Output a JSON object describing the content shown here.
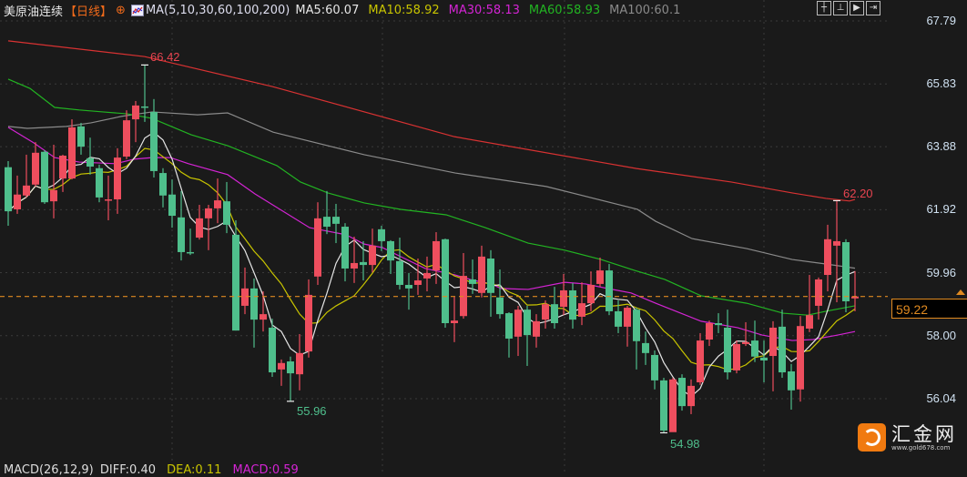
{
  "header": {
    "title": "美原油连续",
    "period": "【日线】",
    "ma_params": "MA(5,10,30,60,100,200)",
    "ma5": "MA5:60.07",
    "ma10": "MA10:58.92",
    "ma30": "MA30:58.13",
    "ma60": "MA60:58.93",
    "ma100": "MA100:60.1"
  },
  "toolbar": {
    "icons": [
      "crosshair-icon",
      "zoom-range-icon",
      "play-icon",
      "exit-icon"
    ]
  },
  "macd": {
    "params": "MACD(26,12,9)",
    "diff": "DIFF:0.40",
    "dea": "DEA:0.11",
    "macd": "MACD:0.59"
  },
  "logo": {
    "name": "汇金网",
    "url": "www.gold678.com"
  },
  "colors": {
    "up": "#ee4e5e",
    "down": "#4fbf8c",
    "bg": "#1a1a1a",
    "ma5": "#e6e6e6",
    "ma10": "#c8c400",
    "ma30": "#d424d4",
    "ma60": "#22b422",
    "ma100": "#8a8a8a",
    "ma200": "#d83232",
    "last_price": "#e08a20"
  },
  "chart_data": {
    "type": "candlestick",
    "ylim": [
      56.04,
      67.79
    ],
    "y_ticks": [
      "67.79",
      "65.83",
      "63.88",
      "61.92",
      "59.96",
      "58.00",
      "56.04"
    ],
    "grid": true,
    "last_price": "59.22",
    "annotations": {
      "high1": "66.42",
      "low1": "55.96",
      "low2": "54.98",
      "high2": "62.20"
    },
    "ohlc_order": [
      "open",
      "high",
      "low",
      "close"
    ],
    "candles": [
      [
        63.24,
        63.43,
        61.42,
        61.87
      ],
      [
        61.93,
        62.98,
        61.79,
        62.39
      ],
      [
        62.36,
        63.63,
        62.3,
        62.67
      ],
      [
        62.7,
        64.02,
        62.64,
        63.69
      ],
      [
        63.72,
        63.77,
        62.1,
        62.15
      ],
      [
        62.18,
        63.94,
        61.65,
        62.53
      ],
      [
        62.89,
        63.63,
        62.47,
        63.6
      ],
      [
        62.89,
        64.73,
        62.86,
        64.48
      ],
      [
        64.51,
        64.62,
        63.63,
        63.88
      ],
      [
        63.52,
        64.16,
        63.01,
        63.26
      ],
      [
        63.21,
        63.32,
        62.15,
        62.3
      ],
      [
        62.21,
        62.98,
        61.59,
        62.24
      ],
      [
        62.24,
        63.83,
        61.79,
        63.54
      ],
      [
        63.57,
        65.01,
        63.49,
        64.7
      ],
      [
        64.73,
        65.3,
        64.02,
        65.16
      ],
      [
        65.13,
        66.42,
        64.65,
        65.1
      ],
      [
        64.96,
        65.36,
        62.92,
        63.12
      ],
      [
        63.06,
        63.21,
        61.99,
        62.36
      ],
      [
        62.39,
        62.86,
        61.36,
        61.73
      ],
      [
        61.68,
        62.5,
        60.34,
        60.6
      ],
      [
        60.6,
        61.33,
        60.51,
        60.57
      ],
      [
        61.05,
        62.07,
        60.99,
        61.65
      ],
      [
        61.65,
        62.07,
        60.66,
        61.96
      ],
      [
        61.96,
        62.89,
        61.5,
        62.21
      ],
      [
        62.18,
        62.78,
        61.19,
        61.45
      ],
      [
        61.14,
        61.59,
        58.16,
        58.16
      ],
      [
        58.93,
        60.12,
        58.67,
        59.47
      ],
      [
        59.47,
        59.78,
        57.63,
        58.5
      ],
      [
        58.5,
        59.38,
        58.13,
        58.67
      ],
      [
        58.25,
        58.53,
        56.72,
        56.86
      ],
      [
        56.95,
        57.26,
        56.44,
        57.15
      ],
      [
        57.2,
        57.35,
        55.96,
        56.83
      ],
      [
        56.8,
        58.05,
        56.3,
        57.46
      ],
      [
        57.51,
        59.75,
        57.32,
        59.27
      ],
      [
        59.84,
        62.15,
        59.58,
        61.65
      ],
      [
        61.7,
        62.5,
        61.16,
        61.39
      ],
      [
        61.7,
        62.1,
        60.88,
        61.48
      ],
      [
        61.39,
        61.5,
        59.69,
        60.09
      ],
      [
        60.09,
        61.08,
        59.64,
        60.26
      ],
      [
        60.29,
        60.94,
        59.72,
        60.2
      ],
      [
        60.2,
        61.33,
        59.97,
        60.8
      ],
      [
        61.31,
        61.42,
        60.63,
        60.94
      ],
      [
        60.94,
        60.97,
        59.92,
        60.34
      ],
      [
        60.32,
        61.05,
        59.44,
        59.58
      ],
      [
        59.58,
        59.95,
        58.81,
        59.47
      ],
      [
        59.58,
        60.4,
        59.27,
        59.72
      ],
      [
        59.78,
        60.46,
        59.38,
        59.95
      ],
      [
        60.03,
        61.22,
        59.61,
        60.94
      ],
      [
        61.0,
        61.02,
        58.25,
        58.39
      ],
      [
        58.39,
        59.21,
        57.8,
        58.47
      ],
      [
        58.61,
        60.57,
        58.53,
        59.86
      ],
      [
        59.75,
        60.37,
        59.3,
        59.61
      ],
      [
        59.33,
        60.8,
        59.19,
        60.46
      ],
      [
        60.4,
        60.66,
        58.59,
        59.33
      ],
      [
        59.19,
        60.06,
        58.53,
        58.67
      ],
      [
        58.7,
        58.73,
        57.32,
        57.91
      ],
      [
        57.97,
        58.93,
        57.37,
        58.81
      ],
      [
        58.81,
        58.93,
        57.06,
        58.02
      ],
      [
        57.97,
        58.67,
        57.63,
        58.45
      ],
      [
        58.5,
        59.1,
        58.22,
        58.98
      ],
      [
        58.98,
        59.52,
        58.22,
        58.39
      ],
      [
        58.9,
        59.92,
        58.64,
        59.41
      ],
      [
        59.41,
        59.64,
        58.22,
        58.5
      ],
      [
        58.59,
        59.66,
        58.33,
        59.01
      ],
      [
        59.01,
        60.0,
        58.76,
        59.58
      ],
      [
        59.61,
        60.43,
        59.52,
        60.03
      ],
      [
        60.03,
        60.23,
        58.64,
        58.76
      ],
      [
        58.76,
        59.1,
        58.08,
        58.28
      ],
      [
        58.28,
        58.93,
        57.66,
        58.87
      ],
      [
        58.81,
        58.87,
        56.95,
        57.83
      ],
      [
        57.77,
        58.13,
        57.09,
        57.46
      ],
      [
        57.4,
        57.54,
        56.33,
        56.61
      ],
      [
        56.61,
        56.69,
        54.98,
        55.05
      ],
      [
        55.0,
        56.69,
        55.08,
        56.64
      ],
      [
        56.69,
        56.8,
        55.67,
        55.81
      ],
      [
        55.81,
        56.64,
        55.56,
        56.44
      ],
      [
        56.55,
        58.08,
        56.47,
        57.85
      ],
      [
        57.88,
        58.47,
        57.68,
        58.39
      ],
      [
        58.39,
        58.7,
        58.08,
        58.33
      ],
      [
        58.25,
        58.81,
        56.64,
        56.86
      ],
      [
        56.92,
        57.85,
        56.83,
        57.74
      ],
      [
        57.74,
        58.42,
        57.68,
        57.8
      ],
      [
        57.85,
        58.47,
        57.18,
        57.35
      ],
      [
        57.32,
        57.85,
        56.55,
        57.23
      ],
      [
        57.37,
        58.45,
        56.27,
        58.25
      ],
      [
        58.28,
        58.81,
        56.69,
        56.86
      ],
      [
        56.89,
        57.12,
        55.7,
        56.3
      ],
      [
        56.33,
        58.61,
        55.95,
        58.3
      ],
      [
        58.22,
        59.89,
        58.11,
        58.64
      ],
      [
        58.93,
        59.81,
        58.5,
        59.75
      ],
      [
        59.89,
        61.45,
        59.38,
        61.0
      ],
      [
        60.8,
        62.2,
        59.04,
        60.94
      ],
      [
        60.91,
        61.0,
        58.73,
        59.07
      ],
      [
        59.16,
        60.01,
        58.76,
        59.22
      ]
    ],
    "ma_lines": {
      "ma30": [
        [
          0,
          64.48
        ],
        [
          2.8,
          64.0
        ],
        [
          5.1,
          63.54
        ],
        [
          7.8,
          63.4
        ],
        [
          11.8,
          63.35
        ],
        [
          13.8,
          63.49
        ],
        [
          15.8,
          63.54
        ],
        [
          17.8,
          63.54
        ],
        [
          19.8,
          63.35
        ],
        [
          24.1,
          63.01
        ],
        [
          27.1,
          62.41
        ],
        [
          33.1,
          61.36
        ],
        [
          37.1,
          61.14
        ],
        [
          39.1,
          60.85
        ],
        [
          41.1,
          60.74
        ],
        [
          43.1,
          60.46
        ],
        [
          45.8,
          60.09
        ],
        [
          49.1,
          59.89
        ],
        [
          51.1,
          59.72
        ],
        [
          53.1,
          59.61
        ],
        [
          54.1,
          59.47
        ],
        [
          57.1,
          59.44
        ],
        [
          61.1,
          59.66
        ],
        [
          63.4,
          59.61
        ],
        [
          65.8,
          59.47
        ],
        [
          68.4,
          59.33
        ],
        [
          71.1,
          59.01
        ],
        [
          76.1,
          58.45
        ],
        [
          80.1,
          58.25
        ],
        [
          82.8,
          58.02
        ],
        [
          86.1,
          57.85
        ],
        [
          88.4,
          57.88
        ],
        [
          91.1,
          58.02
        ],
        [
          93,
          58.13
        ]
      ],
      "ma60": [
        [
          0,
          65.98
        ],
        [
          2.4,
          65.69
        ],
        [
          5.1,
          65.1
        ],
        [
          7.8,
          65.02
        ],
        [
          10.4,
          64.96
        ],
        [
          13.1,
          64.9
        ],
        [
          15.8,
          64.76
        ],
        [
          20.1,
          64.25
        ],
        [
          24.1,
          63.91
        ],
        [
          29.5,
          63.29
        ],
        [
          32.1,
          62.78
        ],
        [
          35.1,
          62.44
        ],
        [
          39.1,
          62.13
        ],
        [
          43.1,
          61.93
        ],
        [
          48.1,
          61.76
        ],
        [
          52.4,
          61.36
        ],
        [
          57.1,
          60.88
        ],
        [
          61.1,
          60.66
        ],
        [
          65.1,
          60.37
        ],
        [
          68.8,
          60.03
        ],
        [
          72.1,
          59.75
        ],
        [
          76.1,
          59.24
        ],
        [
          81.1,
          59.01
        ],
        [
          85.1,
          58.7
        ],
        [
          87.8,
          58.64
        ],
        [
          89.8,
          58.76
        ],
        [
          93,
          58.93
        ]
      ],
      "ma100": [
        [
          0,
          64.51
        ],
        [
          2.1,
          64.45
        ],
        [
          6.4,
          64.51
        ],
        [
          9.1,
          64.62
        ],
        [
          12.4,
          64.82
        ],
        [
          15.8,
          64.96
        ],
        [
          20.8,
          64.87
        ],
        [
          24.1,
          64.93
        ],
        [
          29.1,
          64.33
        ],
        [
          39.1,
          63.63
        ],
        [
          49.1,
          63.06
        ],
        [
          59.1,
          62.64
        ],
        [
          69.1,
          61.93
        ],
        [
          71.1,
          61.56
        ],
        [
          75.1,
          61.02
        ],
        [
          81.1,
          60.71
        ],
        [
          86.1,
          60.37
        ],
        [
          89.8,
          60.23
        ],
        [
          93,
          60.1
        ]
      ],
      "ma200": [
        [
          0,
          67.17
        ],
        [
          15,
          66.68
        ],
        [
          29,
          65.75
        ],
        [
          49,
          64.19
        ],
        [
          69,
          63.2
        ],
        [
          79.4,
          62.78
        ],
        [
          86.1,
          62.44
        ],
        [
          89.8,
          62.27
        ],
        [
          92.4,
          62.19
        ],
        [
          93,
          62.24
        ]
      ]
    }
  }
}
